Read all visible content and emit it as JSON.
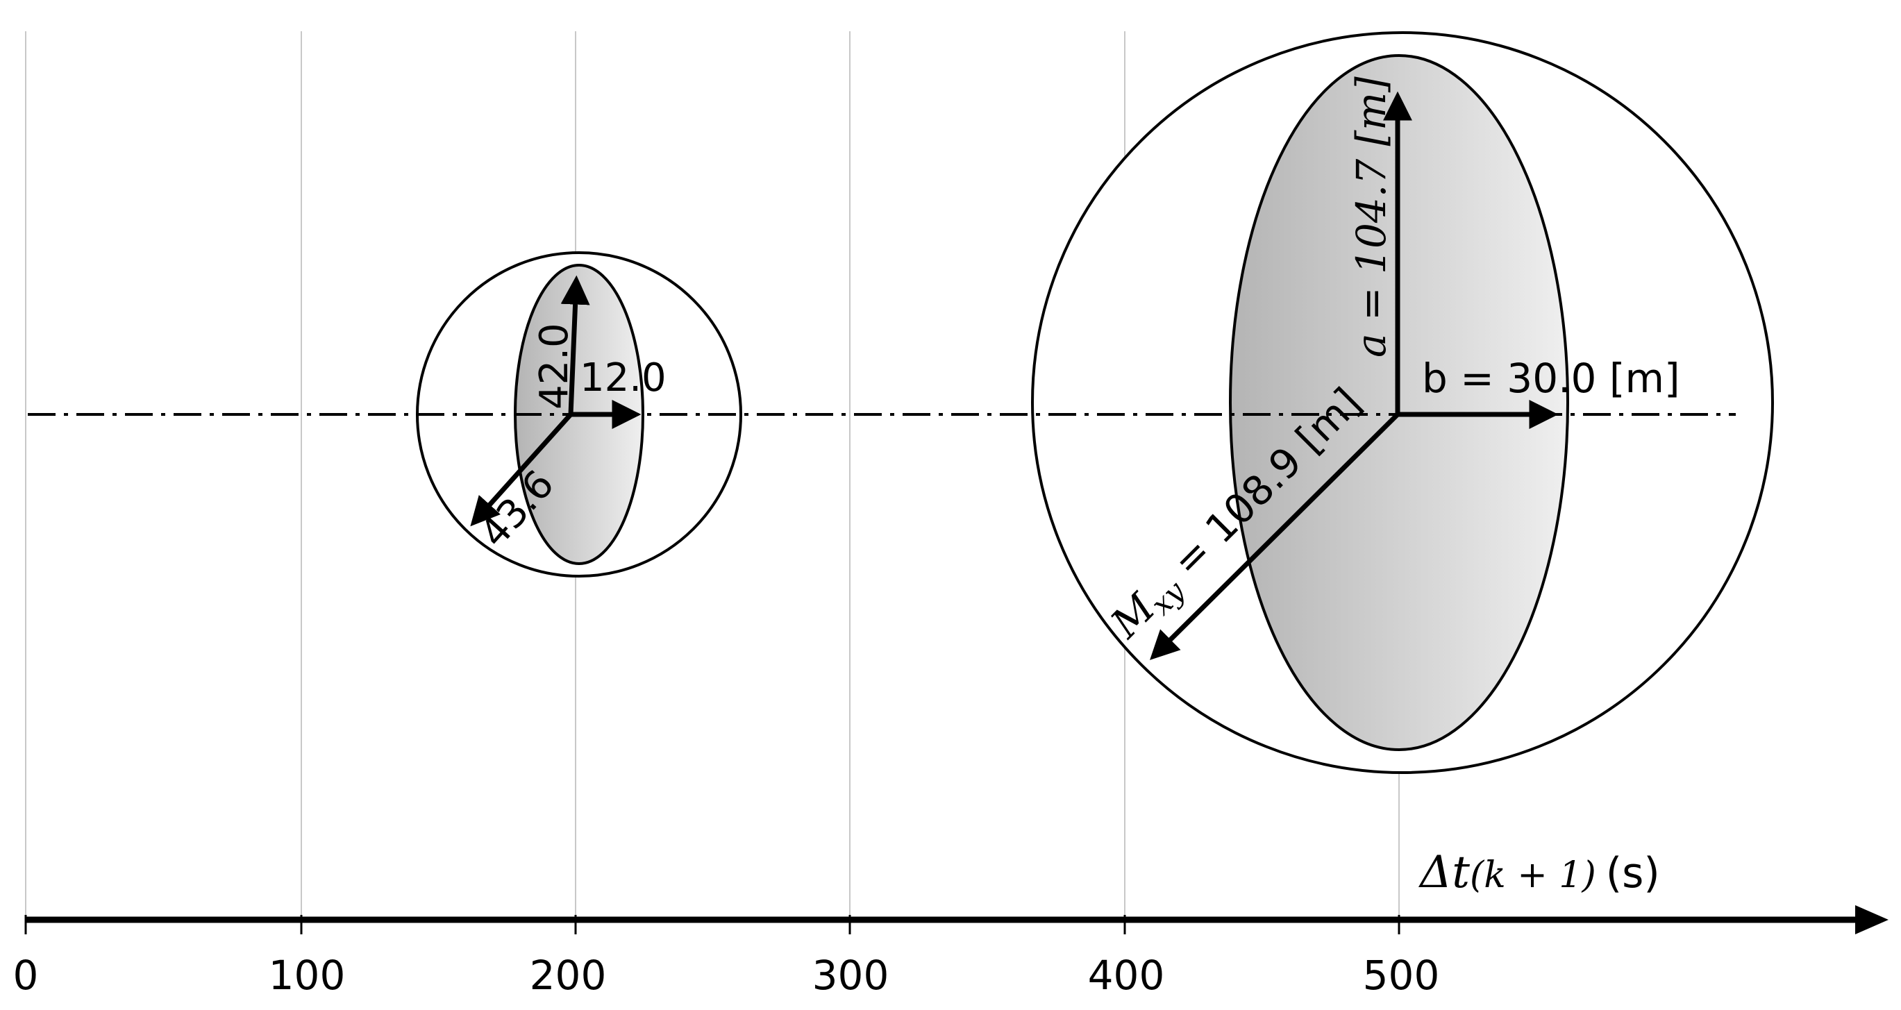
{
  "axis": {
    "label_var": "Δt",
    "label_sub": "(k + 1)",
    "label_unit": "(s)",
    "ticks": [
      "0",
      "100",
      "200",
      "300",
      "400",
      "500"
    ],
    "tick_values": [
      0,
      100,
      200,
      300,
      400,
      500
    ]
  },
  "ellipse_small": {
    "time": 200,
    "a_value": "42.0",
    "b_value": "12.0",
    "m_value": "43.6"
  },
  "ellipse_large": {
    "time": 500,
    "a_label": "a = 104.7 [m]",
    "b_label": "b = 30.0 [m]",
    "m_symbol": "M",
    "m_subscript": "xy",
    "m_rest": " = 108.9 [m]"
  },
  "colors": {
    "ellipse_fill_dark": "#b8b8b8",
    "ellipse_fill_light": "#eeeeee",
    "gridline": "#c8c8c8",
    "stroke": "#000000"
  }
}
